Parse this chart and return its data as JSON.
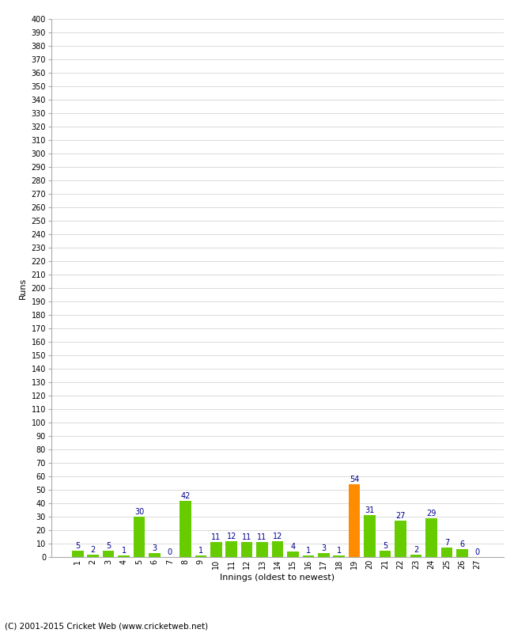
{
  "title": "",
  "xlabel": "Innings (oldest to newest)",
  "ylabel": "Runs",
  "categories": [
    "1",
    "2",
    "3",
    "4",
    "5",
    "6",
    "7",
    "8",
    "9",
    "10",
    "11",
    "12",
    "13",
    "14",
    "15",
    "16",
    "17",
    "18",
    "19",
    "20",
    "21",
    "22",
    "23",
    "24",
    "25",
    "26",
    "27"
  ],
  "values": [
    5,
    2,
    5,
    1,
    30,
    3,
    0,
    42,
    1,
    11,
    12,
    11,
    11,
    12,
    4,
    1,
    3,
    1,
    54,
    31,
    5,
    27,
    2,
    29,
    7,
    6,
    0
  ],
  "bar_colors": [
    "#66cc00",
    "#66cc00",
    "#66cc00",
    "#66cc00",
    "#66cc00",
    "#66cc00",
    "#66cc00",
    "#66cc00",
    "#66cc00",
    "#66cc00",
    "#66cc00",
    "#66cc00",
    "#66cc00",
    "#66cc00",
    "#66cc00",
    "#66cc00",
    "#66cc00",
    "#66cc00",
    "#ff8c00",
    "#66cc00",
    "#66cc00",
    "#66cc00",
    "#66cc00",
    "#66cc00",
    "#66cc00",
    "#66cc00",
    "#66cc00"
  ],
  "ylim": [
    0,
    400
  ],
  "ytick_step": 10,
  "label_color": "#00008b",
  "background_color": "#ffffff",
  "grid_color": "#cccccc",
  "footer": "(C) 2001-2015 Cricket Web (www.cricketweb.net)",
  "spine_color": "#aaaaaa"
}
